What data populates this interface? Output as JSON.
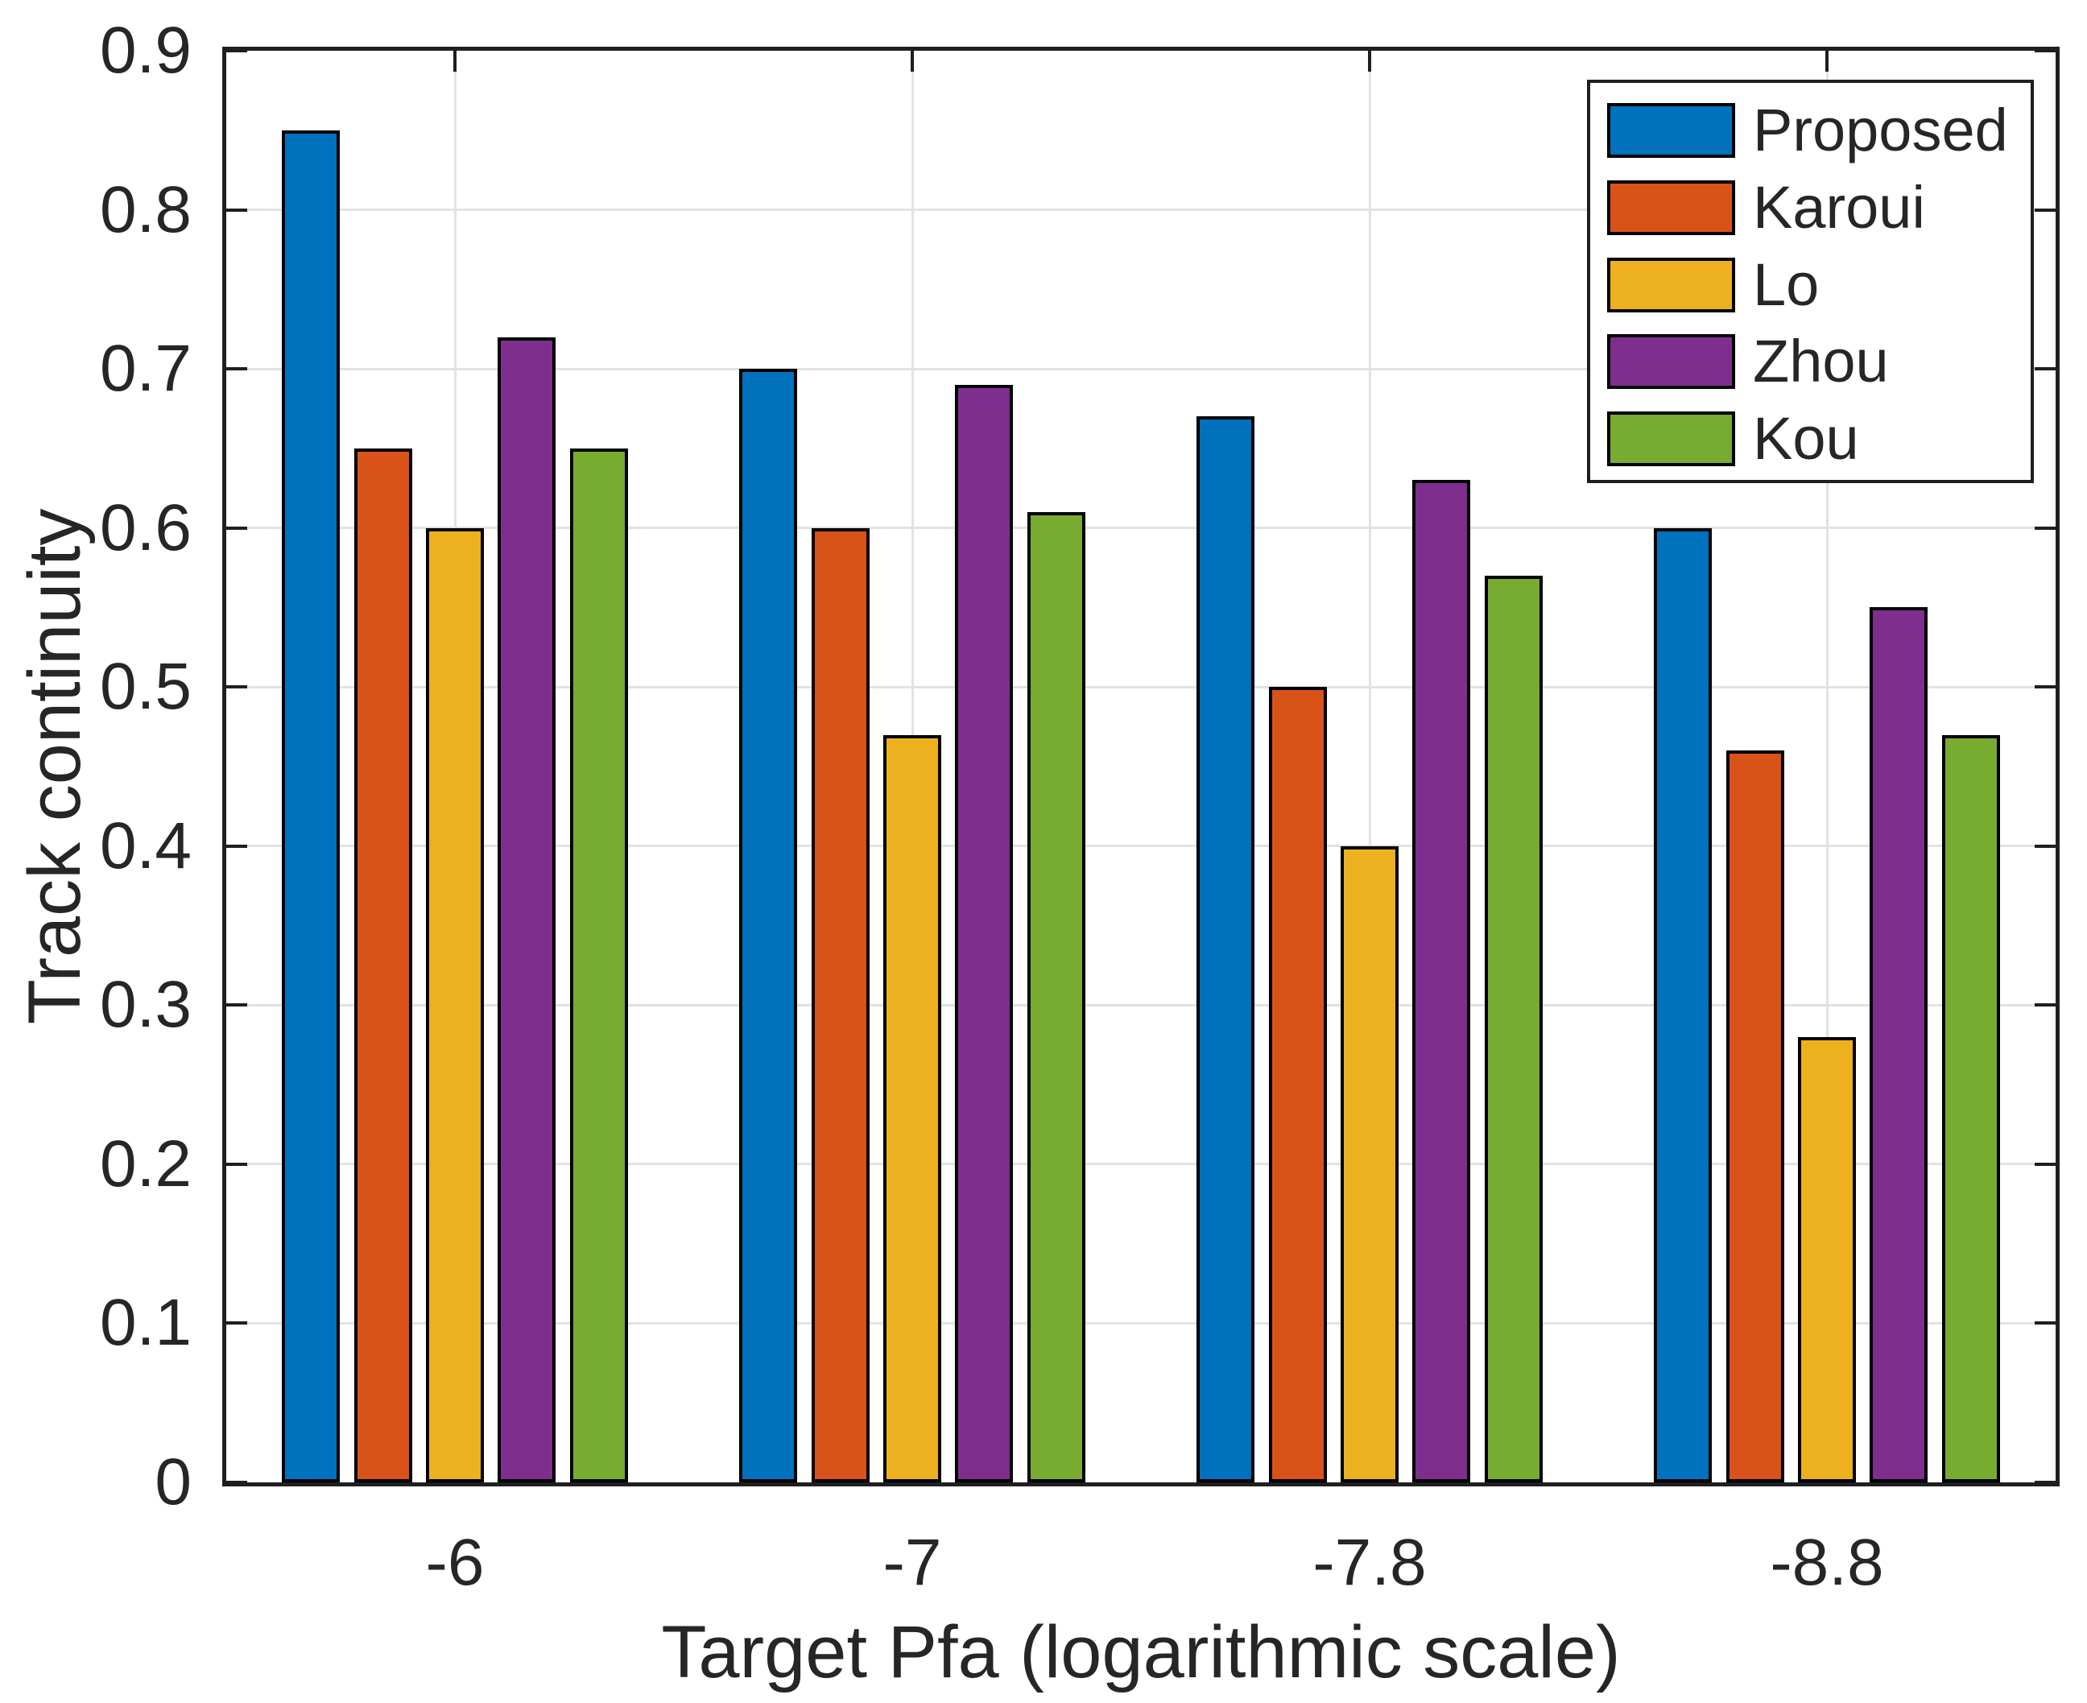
{
  "figure": {
    "background": "#ffffff",
    "axis_color": "#1f1f1f",
    "grid_color": "#e2e2e2",
    "text_color": "#262626",
    "bar_edge_color": "#000000"
  },
  "chart_data": {
    "type": "bar",
    "title": "",
    "xlabel": "Target Pfa (logarithmic scale)",
    "ylabel": "Track continuity",
    "categories": [
      "-6",
      "-7",
      "-7.8",
      "-8.8"
    ],
    "series": [
      {
        "name": "Proposed",
        "color": "#0072BD",
        "values": [
          0.85,
          0.7,
          0.67,
          0.6
        ]
      },
      {
        "name": "Karoui",
        "color": "#D95319",
        "values": [
          0.65,
          0.6,
          0.5,
          0.46
        ]
      },
      {
        "name": "Lo",
        "color": "#EDB120",
        "values": [
          0.6,
          0.47,
          0.4,
          0.28
        ]
      },
      {
        "name": "Zhou",
        "color": "#7E2F8E",
        "values": [
          0.72,
          0.69,
          0.63,
          0.55
        ]
      },
      {
        "name": "Kou",
        "color": "#77AC30",
        "values": [
          0.65,
          0.61,
          0.57,
          0.47
        ]
      }
    ],
    "ylim": [
      0,
      0.9
    ],
    "yticks": [
      0,
      0.1,
      0.2,
      0.3,
      0.4,
      0.5,
      0.6,
      0.7,
      0.8,
      0.9
    ],
    "grid": true,
    "legend_position": "top-right"
  }
}
